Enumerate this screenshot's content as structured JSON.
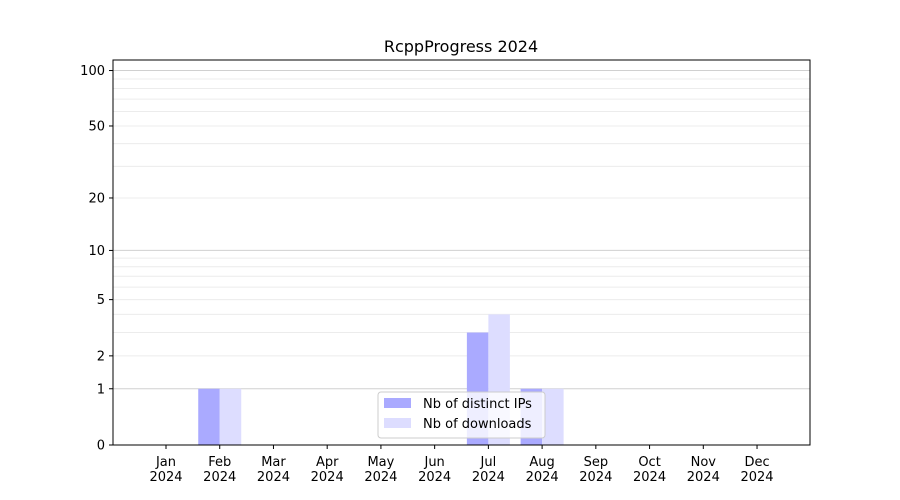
{
  "chart_data": {
    "type": "bar",
    "title": "RcppProgress 2024",
    "xlabel": "",
    "ylabel": "",
    "yscale": "symlog (log10(1+y))",
    "ylim": [
      0,
      114
    ],
    "yticks": [
      0,
      1,
      2,
      5,
      10,
      20,
      50,
      100
    ],
    "grid": true,
    "legend_position": "lower-center",
    "categories": [
      "Jan\n2024",
      "Feb\n2024",
      "Mar\n2024",
      "Apr\n2024",
      "May\n2024",
      "Jun\n2024",
      "Jul\n2024",
      "Aug\n2024",
      "Sep\n2024",
      "Oct\n2024",
      "Nov\n2024",
      "Dec\n2024"
    ],
    "series": [
      {
        "name": "Nb of distinct IPs",
        "color": "#aaaaff",
        "values": [
          0,
          1,
          0,
          0,
          0,
          0,
          3,
          1,
          0,
          0,
          0,
          0
        ]
      },
      {
        "name": "Nb of downloads",
        "color": "#ddddff",
        "values": [
          0,
          1,
          0,
          0,
          0,
          0,
          4,
          1,
          0,
          0,
          0,
          0
        ]
      }
    ]
  }
}
